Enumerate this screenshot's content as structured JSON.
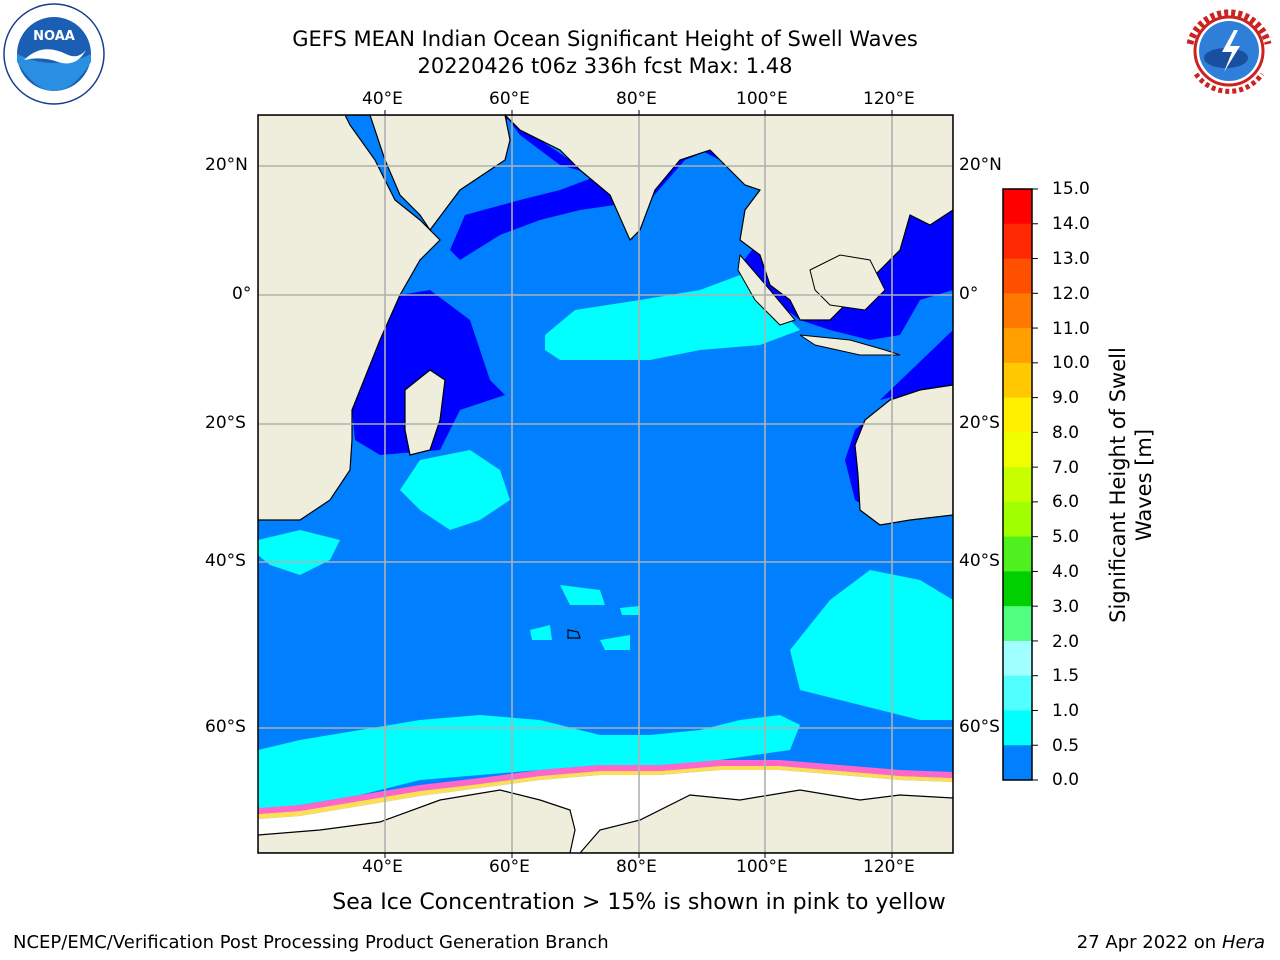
{
  "title": {
    "line1": "GEFS MEAN Indian Ocean Significant Height of Swell Waves",
    "line2": "20220426 t06z 336h fcst   Max: 1.48"
  },
  "logos": {
    "left": {
      "icon": "noaa-logo-icon",
      "text": "NOAA"
    },
    "right": {
      "icon": "national-weather-service-logo-icon",
      "text": "NATIONAL WEATHER SERVICE"
    }
  },
  "axes": {
    "lon_labels": [
      "40°E",
      "60°E",
      "80°E",
      "100°E",
      "120°E"
    ],
    "lat_labels": [
      "20°N",
      "0°",
      "20°S",
      "40°S",
      "60°S"
    ]
  },
  "colorbar": {
    "label": "Significant Height of Swell Waves [m]",
    "ticks": [
      "15.0",
      "14.0",
      "13.0",
      "12.0",
      "11.0",
      "10.0",
      "9.0",
      "8.0",
      "7.0",
      "6.0",
      "5.0",
      "4.0",
      "3.0",
      "2.0",
      "1.5",
      "1.0",
      "0.5",
      "0.0"
    ],
    "colors": [
      "#ff0000",
      "#ff2800",
      "#ff5000",
      "#ff7800",
      "#ffa000",
      "#ffc800",
      "#fff000",
      "#f0ff00",
      "#c8ff00",
      "#a0ff00",
      "#50f020",
      "#00d000",
      "#50ff80",
      "#a0ffff",
      "#50ffff",
      "#00ffff",
      "#0080ff",
      "#0000ff"
    ]
  },
  "map_colors": {
    "land": "#efeedc",
    "ocean_low": "#0000ff",
    "ocean_mid": "#0080ff",
    "ocean_high": "#00ffff",
    "ice": "#ffffff",
    "ice_edge_pink": "#ff66cc",
    "ice_edge_yellow": "#ffdd55",
    "grid": "#b0b0b0"
  },
  "note": "Sea Ice Concentration > 15% is shown in pink to yellow",
  "footer": {
    "left": "NCEP/EMC/Verification Post Processing Product Generation Branch",
    "date": "27 Apr 2022 on ",
    "machine": "Hera"
  }
}
